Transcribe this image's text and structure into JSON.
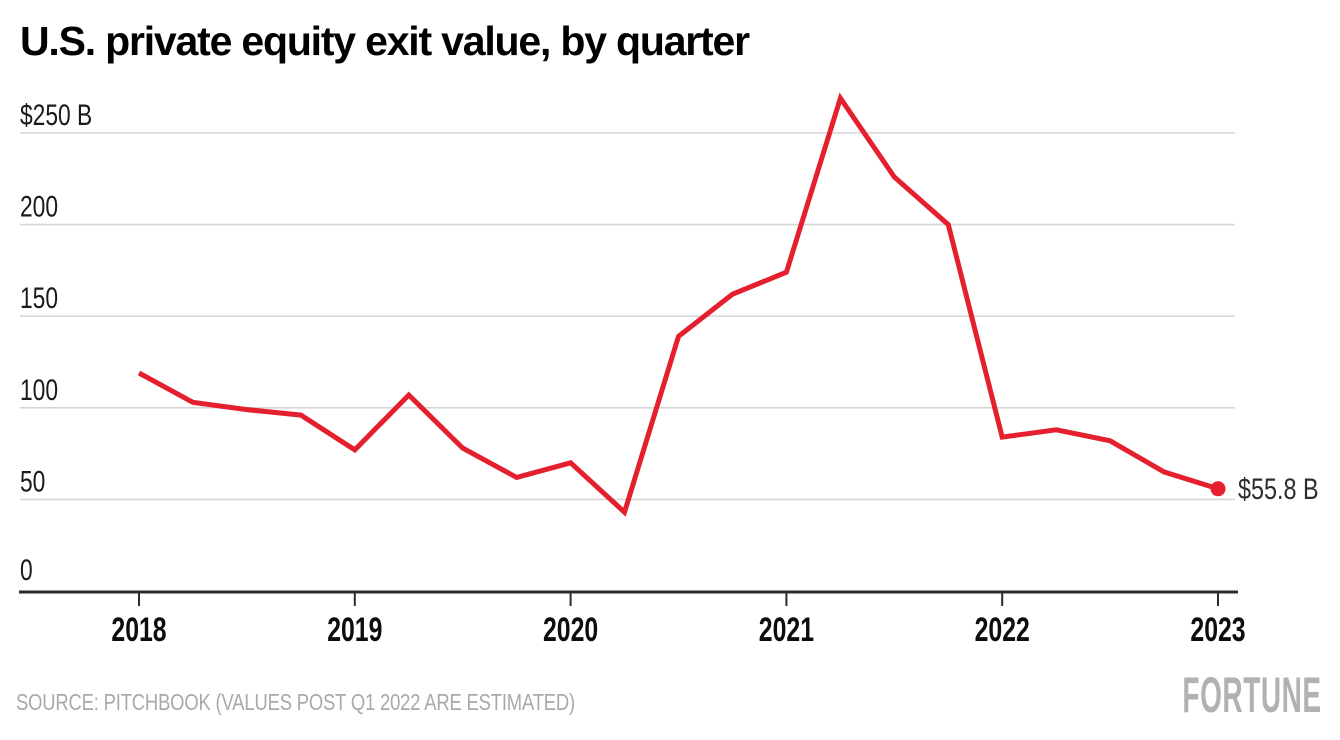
{
  "page": {
    "title": "U.S. private equity exit value, by quarter"
  },
  "footer": {
    "source": "SOURCE: PITCHBOOK (VALUES POST Q1 2022 ARE ESTIMATED)",
    "brand": "FORTUNE"
  },
  "colors": {
    "line": "#e5202e",
    "grid": "#d6d6d6",
    "axis": "#2b2b2b",
    "tick_text": "#1a1a1a",
    "end_label_text": "#2e2e2e",
    "muted_text": "#a9a9a9",
    "brand_gray": "#b1b1b1"
  },
  "chart_data": {
    "type": "line",
    "title": "U.S. private equity exit value, by quarter",
    "unit": "USD billions",
    "x": [
      "2018 Q1",
      "2018 Q2",
      "2018 Q3",
      "2018 Q4",
      "2019 Q1",
      "2019 Q2",
      "2019 Q3",
      "2019 Q4",
      "2020 Q1",
      "2020 Q2",
      "2020 Q3",
      "2020 Q4",
      "2021 Q1",
      "2021 Q2",
      "2021 Q3",
      "2021 Q4",
      "2022 Q1",
      "2022 Q2",
      "2022 Q3",
      "2022 Q4",
      "2023 Q1"
    ],
    "values": [
      119,
      103,
      99,
      96,
      77,
      107,
      78,
      62,
      70,
      43,
      139,
      162,
      174,
      269,
      226,
      200,
      84,
      88,
      82,
      65,
      55.8
    ],
    "x_tick_labels": [
      "2018",
      "2019",
      "2020",
      "2021",
      "2022",
      "2023"
    ],
    "y_ticks": [
      0,
      50,
      100,
      150,
      200,
      250
    ],
    "y_top_tick_label": "$250 B",
    "ylim": [
      0,
      275
    ],
    "xlabel": "",
    "ylabel": "",
    "grid": true,
    "legend": false,
    "line_color": "#e5202e",
    "end_label": "$55.8 B"
  }
}
